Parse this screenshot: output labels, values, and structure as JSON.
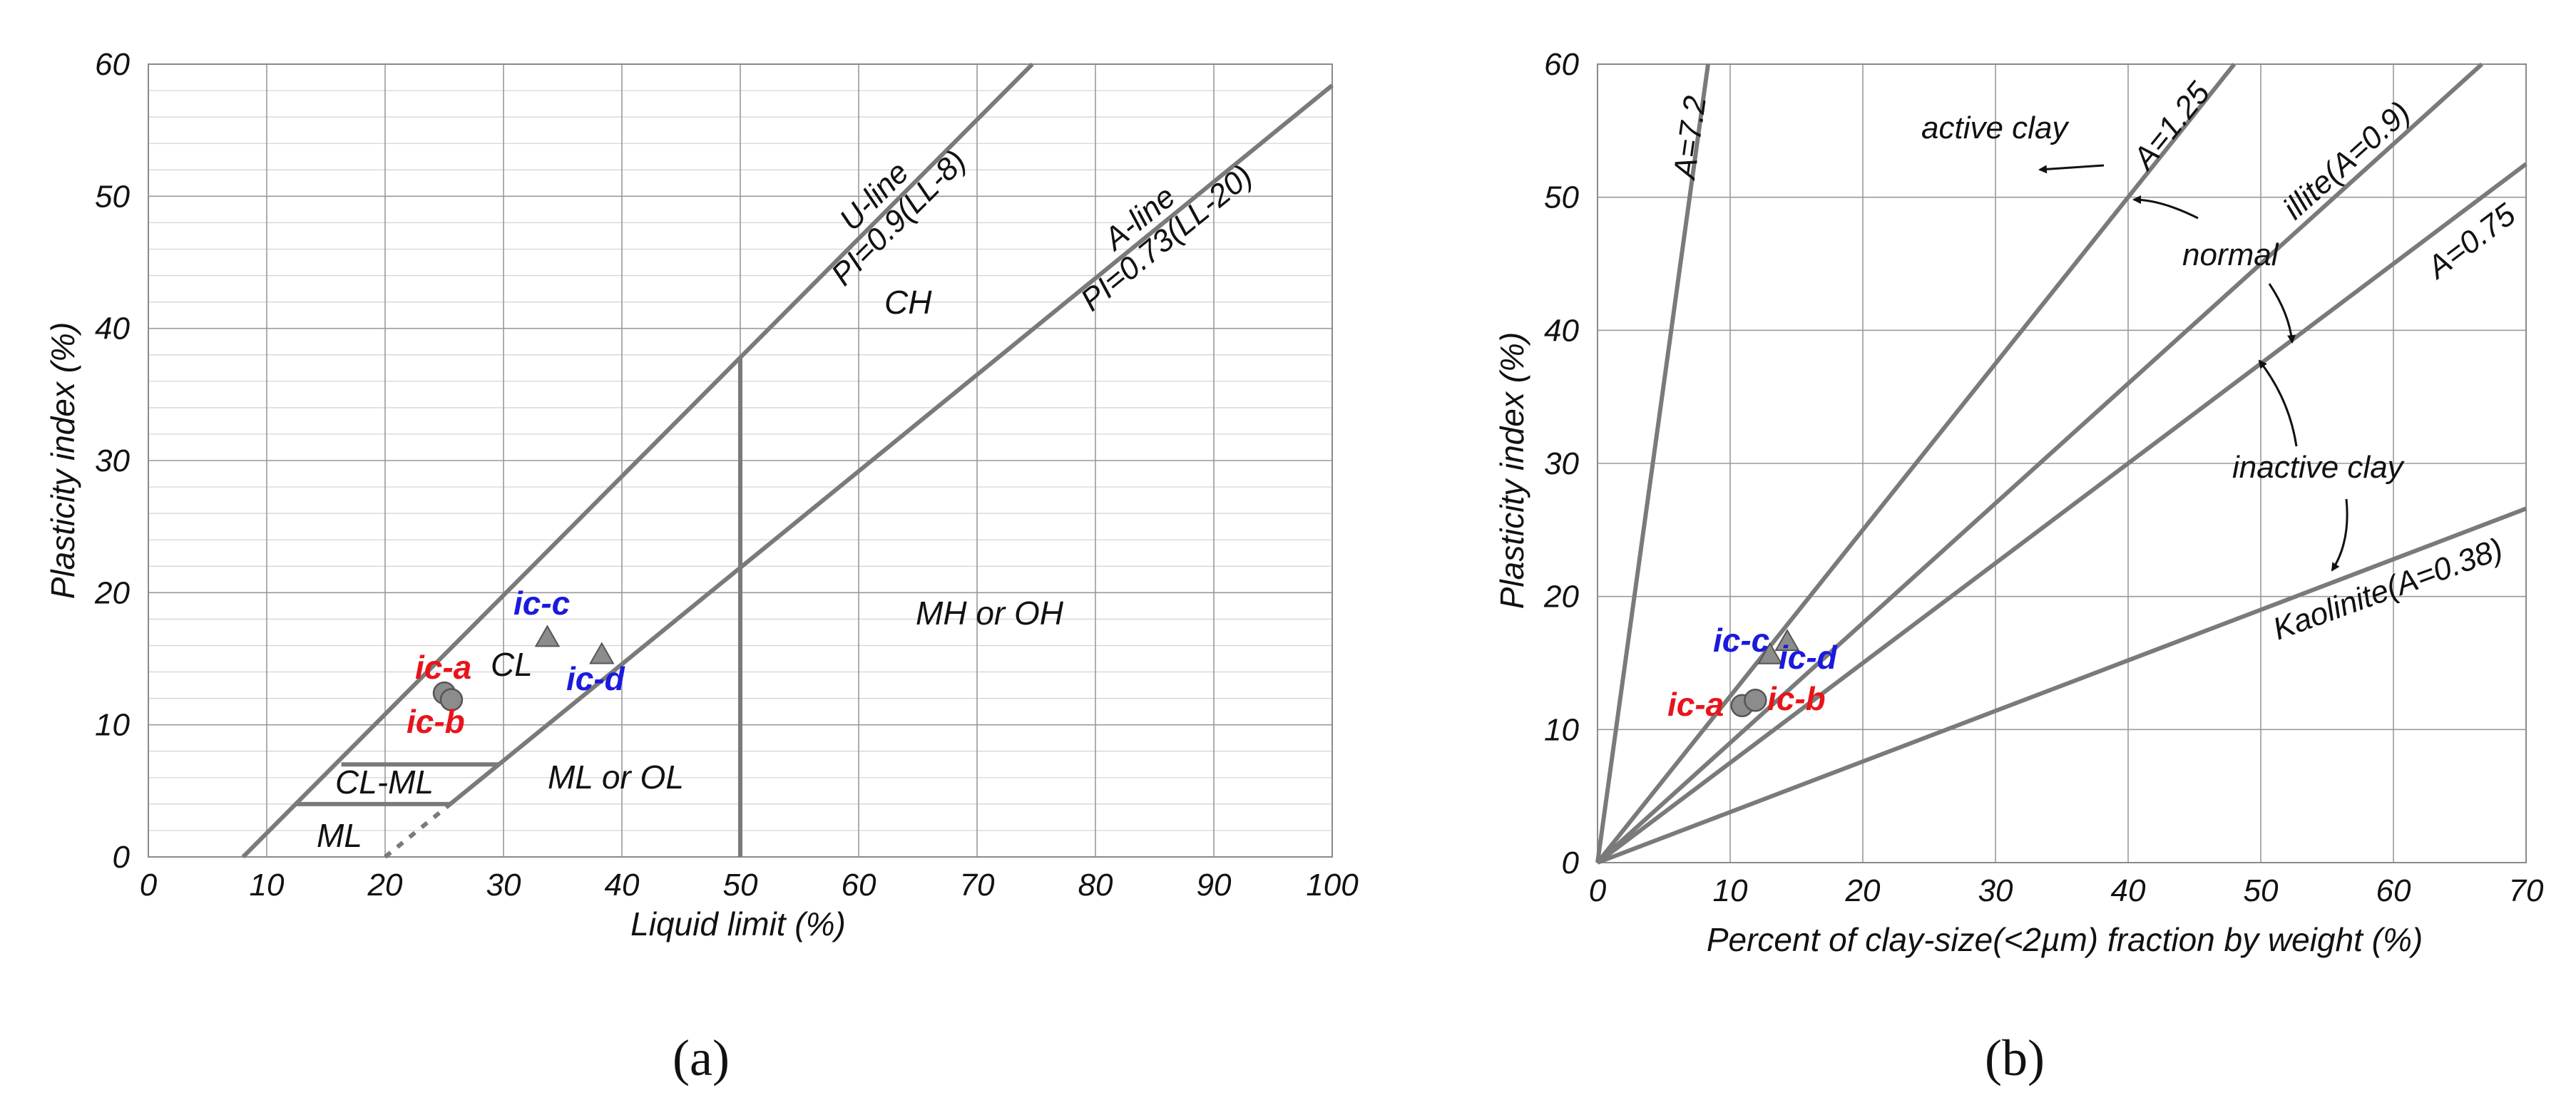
{
  "chart_data": [
    {
      "type": "scatter",
      "panel_label": "(a)",
      "xlabel": "Liquid limit (%)",
      "ylabel": "Plasticity index (%)",
      "xlim": [
        0,
        100
      ],
      "ylim": [
        0,
        60
      ],
      "x_ticks": [
        0,
        10,
        20,
        30,
        40,
        50,
        60,
        70,
        80,
        90,
        100
      ],
      "y_ticks": [
        0,
        10,
        20,
        30,
        40,
        50,
        60
      ],
      "lines": [
        {
          "name": "U-line",
          "equation": "PI=0.9(LL-8)",
          "x": [
            8,
            74.67
          ],
          "y": [
            0,
            60
          ]
        },
        {
          "name": "A-line",
          "equation": "PI=0.73(LL-20)",
          "x": [
            25.5,
            100
          ],
          "y": [
            4,
            58.4
          ]
        },
        {
          "name": "LL=50",
          "x": [
            50,
            50
          ],
          "y": [
            0,
            37.8
          ]
        },
        {
          "name": "CL-ML upper boundary",
          "x": [
            16.3,
            29.6
          ],
          "y": [
            7,
            7
          ]
        },
        {
          "name": "CL-ML lower boundary",
          "x": [
            12.4,
            25.5
          ],
          "y": [
            4,
            4
          ]
        },
        {
          "name": "A-line extension (dashed)",
          "x": [
            20,
            25.5
          ],
          "y": [
            0,
            4
          ],
          "dashed": true
        }
      ],
      "zones": [
        "CH",
        "CL",
        "MH or OH",
        "ML or OL",
        "CL-ML",
        "ML"
      ],
      "points": [
        {
          "label": "ic-a",
          "x": 25.0,
          "y": 12.4,
          "marker": "circle",
          "color": "#e8141b"
        },
        {
          "label": "ic-b",
          "x": 25.6,
          "y": 11.9,
          "marker": "circle",
          "color": "#e8141b"
        },
        {
          "label": "ic-c",
          "x": 33.7,
          "y": 16.6,
          "marker": "triangle",
          "color": "#1a1adf"
        },
        {
          "label": "ic-d",
          "x": 38.3,
          "y": 15.3,
          "marker": "triangle",
          "color": "#1a1adf"
        }
      ]
    },
    {
      "type": "scatter",
      "panel_label": "(b)",
      "xlabel": "Percent of clay-size(<2µm) fraction by weight (%)",
      "ylabel": "Plasticity index (%)",
      "xlim": [
        0,
        70
      ],
      "ylim": [
        0,
        60
      ],
      "x_ticks": [
        0,
        10,
        20,
        30,
        40,
        50,
        60,
        70
      ],
      "y_ticks": [
        0,
        10,
        20,
        30,
        40,
        50,
        60
      ],
      "lines": [
        {
          "name": "A=7.2",
          "slope": 7.2
        },
        {
          "name": "A=1.25",
          "slope": 1.25
        },
        {
          "name": "illite(A=0.9)",
          "slope": 0.9
        },
        {
          "name": "A=0.75",
          "slope": 0.75
        },
        {
          "name": "Kaolinite(A=0.38)",
          "slope": 0.38
        }
      ],
      "annotations": [
        "active clay",
        "normal",
        "inactive clay"
      ],
      "points": [
        {
          "label": "ic-a",
          "x": 10.9,
          "y": 11.8,
          "marker": "circle",
          "color": "#e8141b"
        },
        {
          "label": "ic-b",
          "x": 11.9,
          "y": 12.2,
          "marker": "circle",
          "color": "#e8141b"
        },
        {
          "label": "ic-c",
          "x": 13.0,
          "y": 15.6,
          "marker": "triangle",
          "color": "#1a1adf"
        },
        {
          "label": "ic-d",
          "x": 14.3,
          "y": 16.6,
          "marker": "triangle",
          "color": "#1a1adf"
        }
      ]
    }
  ]
}
